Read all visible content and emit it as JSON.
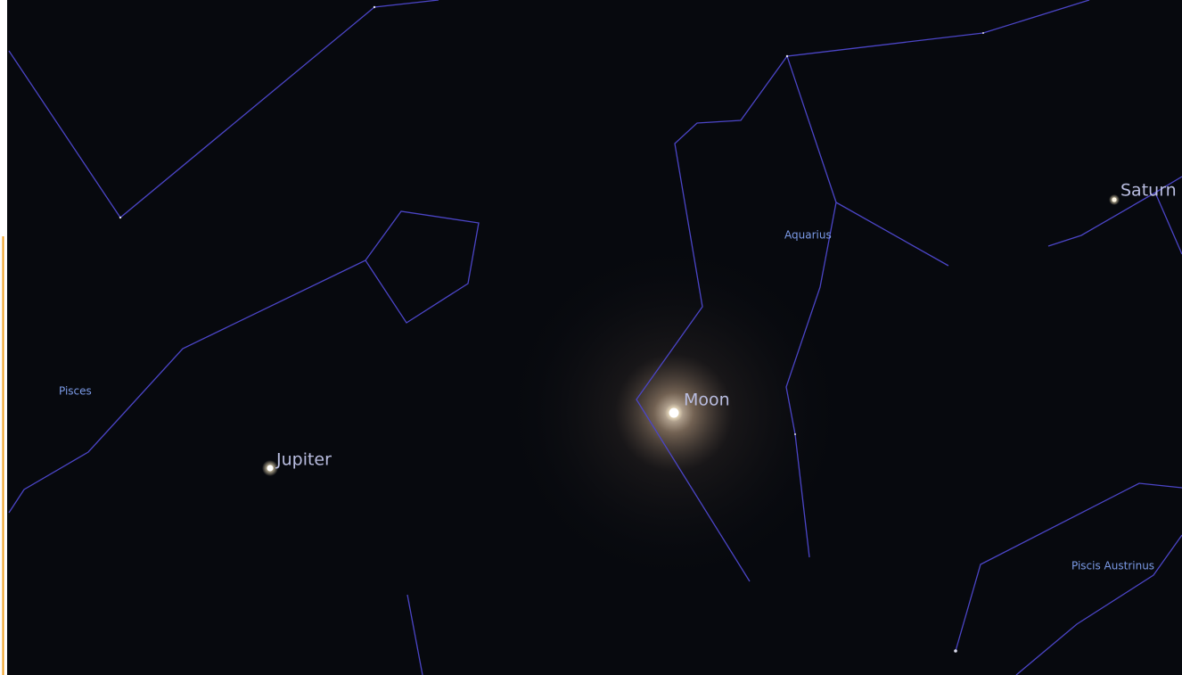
{
  "planets": [
    {
      "label": "Moon"
    },
    {
      "label": "Jupiter"
    },
    {
      "label": "Saturn"
    }
  ],
  "constellations": [
    {
      "label": "Aquarius"
    },
    {
      "label": "Pisces"
    },
    {
      "label": "Piscis Austrinus"
    }
  ]
}
